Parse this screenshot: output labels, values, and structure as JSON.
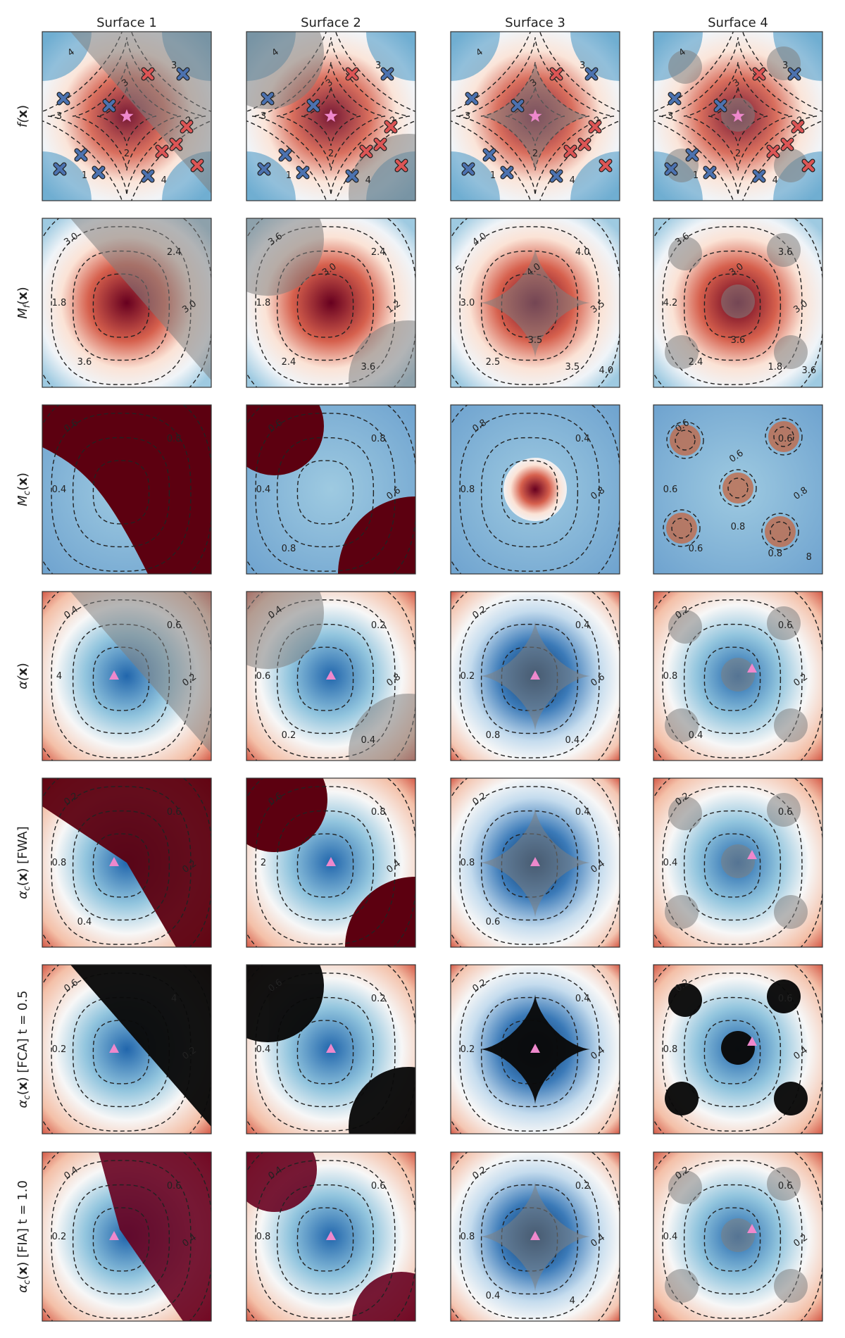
{
  "figure": {
    "column_titles": [
      "Surface 1",
      "Surface 2",
      "Surface 3",
      "Surface 4"
    ],
    "row_labels": [
      "f(x)",
      "M_f(x)",
      "M_c(x)",
      "α(x)",
      "α_c(x) [FWA]",
      "α_c(x) [FCA] t = 0.5",
      "α_c(x) [FIA] t = 1.0"
    ],
    "row_label_parts": [
      {
        "main": "f(",
        "bold": "x",
        "tail": ")",
        "sub": "",
        "extra": ""
      },
      {
        "main": "M",
        "bold": "x",
        "tail": ")",
        "sub": "f",
        "extra": ""
      },
      {
        "main": "M",
        "bold": "x",
        "tail": ")",
        "sub": "c",
        "extra": ""
      },
      {
        "main": "α(",
        "bold": "x",
        "tail": ")",
        "sub": "",
        "extra": ""
      },
      {
        "main": "α",
        "bold": "x",
        "tail": ")",
        "sub": "c",
        "extra": " [FWA]"
      },
      {
        "main": "α",
        "bold": "x",
        "tail": ")",
        "sub": "c",
        "extra": " [FCA] t = 0.5"
      },
      {
        "main": "α",
        "bold": "x",
        "tail": ")",
        "sub": "c",
        "extra": " [FIA] t = 1.0"
      }
    ]
  },
  "chart_data": {
    "type": "heatmap",
    "layout": "grid 7 rows × 4 columns",
    "axes_ticks": "none",
    "colormap": "RdBu (red = low, blue = high), infeasible regions shaded gray/black",
    "colors": {
      "red": "#67001f",
      "white": "#f7f7f7",
      "blue": "#053061",
      "contour": "#222222",
      "feasible_marker": "#4c72b0",
      "infeasible_marker": "#dd5555",
      "optimum_marker": "#ee88cc",
      "infeasible_shade": "#808080",
      "frame": "#333333"
    },
    "surfaces": [
      {
        "name": "Surface 1",
        "constraint": "diagonal half-plane (upper-right infeasible)"
      },
      {
        "name": "Surface 2",
        "constraint": "two corner disks (top-left and bottom-right infeasible)"
      },
      {
        "name": "Surface 3",
        "constraint": "central star region infeasible"
      },
      {
        "name": "Surface 4",
        "constraint": "several small disks infeasible"
      }
    ],
    "contour_labels": {
      "f(x)": {
        "Surface 1": [
          "4",
          "3",
          "3",
          "2",
          "1",
          "4",
          "3",
          "2"
        ],
        "Surface 2": [
          "4",
          "3",
          "3",
          "2",
          "1",
          "4",
          "3",
          "2"
        ],
        "Surface 3": [
          "4",
          "3",
          "3",
          "2",
          "1",
          "4",
          "3",
          "2"
        ],
        "Surface 4": [
          "4",
          "3",
          "3",
          "2",
          "1",
          "4",
          "3",
          "2"
        ]
      },
      "M_f(x)": {
        "Surface 1": [
          "3.0",
          "2.4",
          "1.8",
          "3.0",
          "3.6"
        ],
        "Surface 2": [
          "3.6",
          "2.4",
          "1.8",
          "1.2",
          "2.4",
          "3.6",
          "3.0"
        ],
        "Surface 3": [
          "4.0",
          "4.0",
          "3.0",
          "3.5",
          "2.5",
          "3.5",
          "4.0",
          "3.5",
          "4.0",
          "5"
        ],
        "Surface 4": [
          "3.6",
          "3.6",
          "4.2",
          "3.0",
          "2.4",
          "1.8",
          "3.0",
          "3.6",
          "3.6"
        ]
      },
      "M_c(x)": {
        "Surface 1": [
          "0.6",
          "0.8",
          "0.4"
        ],
        "Surface 2": [
          "0.6",
          "0.8",
          "0.4",
          "0.6",
          "0.8"
        ],
        "Surface 3": [
          "0.8",
          "0.4",
          "0.8",
          "0.8"
        ],
        "Surface 4": [
          "0.6",
          "0.6",
          "0.6",
          "0.8",
          "0.6",
          "0.8",
          "0.6",
          "0.8",
          "8"
        ]
      },
      "α(x)": {
        "Surface 1": [
          "0.4",
          "0.6",
          "4",
          "0.2"
        ],
        "Surface 2": [
          "0.4",
          "0.2",
          "0.6",
          "0.8",
          "0.2",
          "0.4"
        ],
        "Surface 3": [
          "0.2",
          "0.4",
          "0.2",
          "0.6",
          "0.8",
          "0.4"
        ],
        "Surface 4": [
          "0.2",
          "0.6",
          "0.8",
          "0.2",
          "0.4"
        ]
      },
      "α_c(x) [FWA]": {
        "Surface 1": [
          "0.2",
          "0.6",
          "0.8",
          "0.2",
          "0.4"
        ],
        "Surface 2": [
          "0.6",
          "0.8",
          "2",
          "0.4"
        ],
        "Surface 3": [
          "0.2",
          "0.4",
          "0.8",
          "0.4",
          "0.6"
        ],
        "Surface 4": [
          "0.2",
          "0.6",
          "0.4"
        ]
      },
      "α_c(x) [FCA] t = 0.5": {
        "Surface 1": [
          "0.6",
          "4",
          "0.2",
          "0.2"
        ],
        "Surface 2": [
          "0.6",
          "0.2",
          "0.4"
        ],
        "Surface 3": [
          "0.2",
          "0.4",
          "0.2",
          "0.4"
        ],
        "Surface 4": [
          "0.2",
          "0.6",
          "0.8",
          "0.4"
        ]
      },
      "α_c(x) [FIA] t = 1.0": {
        "Surface 1": [
          "0.4",
          "0.6",
          "0.2",
          "0.4"
        ],
        "Surface 2": [
          "0.4",
          "0.6",
          "0.8"
        ],
        "Surface 3": [
          "0.2",
          "0.2",
          "0.8",
          "0.4",
          "0.4",
          "4"
        ],
        "Surface 4": [
          "0.2",
          "0.6",
          "0.4",
          "0.2"
        ]
      }
    }
  }
}
